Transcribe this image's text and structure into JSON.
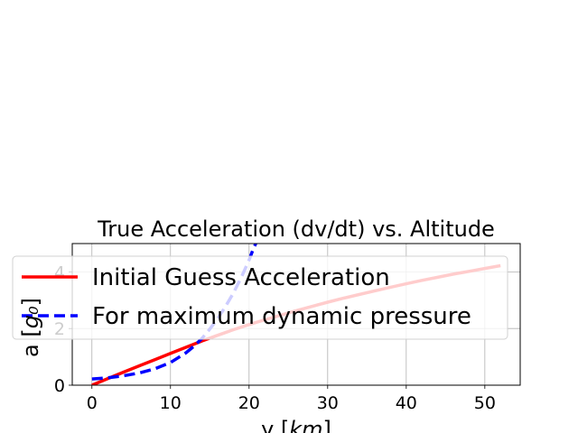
{
  "chart_data": {
    "type": "line",
    "title": "True Acceleration (dv/dt) vs. Altitude",
    "xlabel": "y [km]",
    "ylabel": "a [g₀]",
    "xlim": [
      -2.5,
      54.5
    ],
    "ylim": [
      0,
      5
    ],
    "x_ticks": [
      0,
      10,
      20,
      30,
      40,
      50
    ],
    "y_ticks": [
      0,
      2,
      4
    ],
    "grid": true,
    "legend": {
      "placement": "upper-left"
    },
    "series": [
      {
        "name": "Initial Guess Acceleration",
        "color": "#ff0000",
        "style": "solid",
        "x": [
          0,
          2,
          4,
          6,
          8,
          10,
          12,
          14,
          16,
          18,
          20,
          22,
          24,
          26,
          28,
          30,
          32,
          34,
          36,
          38,
          40,
          42,
          44,
          46,
          48,
          50,
          52
        ],
        "y": [
          0.0,
          0.23,
          0.46,
          0.68,
          0.9,
          1.12,
          1.34,
          1.56,
          1.76,
          1.96,
          2.14,
          2.31,
          2.47,
          2.63,
          2.78,
          2.93,
          3.07,
          3.2,
          3.33,
          3.46,
          3.58,
          3.7,
          3.81,
          3.92,
          4.02,
          4.12,
          4.22
        ]
      },
      {
        "name": "For maximum dynamic pressure",
        "color": "#0000ff",
        "style": "dashed",
        "x": [
          0,
          2,
          4,
          6,
          8,
          10,
          12,
          13,
          14,
          15,
          16,
          17,
          18,
          19,
          20,
          20.5,
          21
        ],
        "y": [
          0.22,
          0.26,
          0.33,
          0.43,
          0.58,
          0.8,
          1.15,
          1.38,
          1.65,
          1.98,
          2.35,
          2.78,
          3.25,
          3.8,
          4.42,
          4.78,
          5.1
        ]
      }
    ]
  }
}
